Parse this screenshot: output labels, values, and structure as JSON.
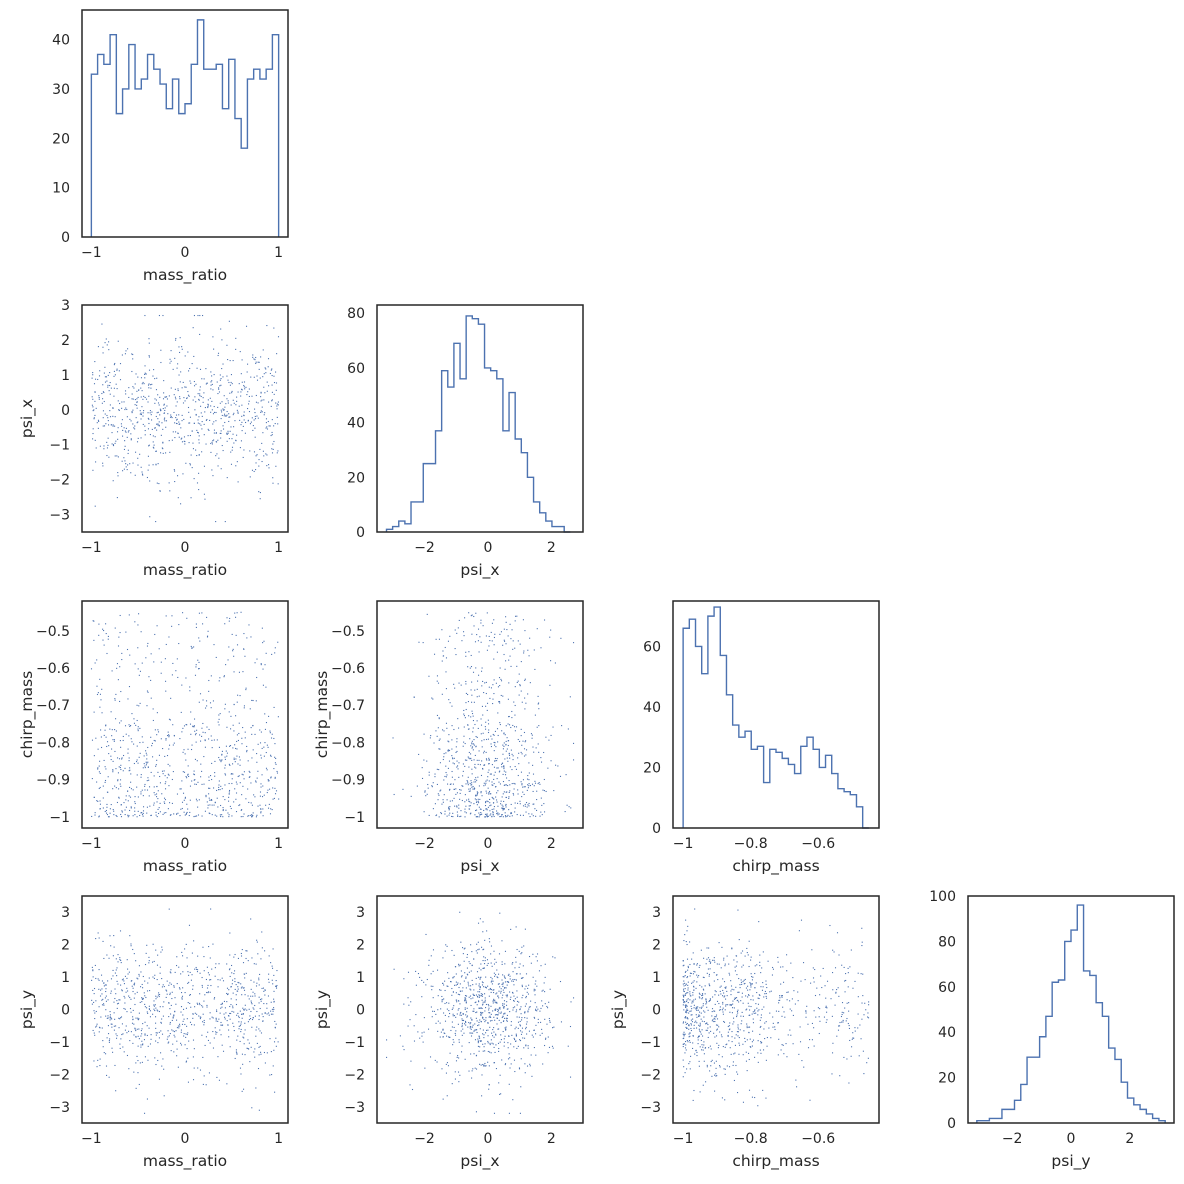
{
  "chart_data": {
    "type": "corner",
    "grid": false,
    "variables": [
      {
        "name": "mass_ratio",
        "range": [
          -1.1,
          1.1
        ],
        "ticks": [
          -1,
          0,
          1
        ]
      },
      {
        "name": "psi_x",
        "range": [
          -3.5,
          3.0
        ],
        "ticks": [
          -2,
          0,
          2
        ]
      },
      {
        "name": "chirp_mass",
        "range": [
          -1.03,
          -0.42
        ],
        "ticks": [
          -1.0,
          -0.8,
          -0.6
        ]
      },
      {
        "name": "psi_y",
        "range": [
          -3.5,
          3.5
        ],
        "ticks": [
          -2,
          0,
          2
        ]
      }
    ],
    "scatter_ticks": {
      "psi_x": [
        -3,
        -2,
        -1,
        0,
        1,
        2,
        3
      ],
      "chirp_mass": [
        -1.0,
        -0.9,
        -0.8,
        -0.7,
        -0.6,
        -0.5
      ],
      "psi_y": [
        -3,
        -2,
        -1,
        0,
        1,
        2,
        3
      ]
    },
    "scatter_ranges": {
      "psi_x": [
        -3.5,
        3.0
      ],
      "chirp_mass": [
        -1.03,
        -0.42
      ],
      "psi_y": [
        -3.5,
        3.5
      ]
    },
    "histograms": [
      {
        "variable": "mass_ratio",
        "ylim": [
          0,
          46
        ],
        "yticks": [
          0,
          10,
          20,
          30,
          40
        ],
        "bin_range": [
          -1.0,
          1.0
        ],
        "counts": [
          33,
          37,
          35,
          41,
          25,
          30,
          39,
          30,
          32,
          37,
          34,
          31,
          26,
          32,
          25,
          27,
          35,
          44,
          34,
          34,
          35,
          26,
          36,
          24,
          18,
          32,
          34,
          32,
          34,
          41
        ]
      },
      {
        "variable": "psi_x",
        "ylim": [
          0,
          83
        ],
        "yticks": [
          0,
          20,
          40,
          60,
          80
        ],
        "bin_range": [
          -3.2,
          2.6
        ],
        "counts": [
          1,
          2,
          4,
          3,
          11,
          11,
          25,
          25,
          37,
          59,
          53,
          69,
          56,
          79,
          78,
          76,
          60,
          59,
          56,
          37,
          51,
          34,
          29,
          20,
          11,
          7,
          4,
          2,
          2,
          0
        ]
      },
      {
        "variable": "chirp_mass",
        "ylim": [
          0,
          75
        ],
        "yticks": [
          0,
          20,
          40,
          60
        ],
        "bin_range": [
          -1.0,
          -0.45
        ],
        "counts": [
          66,
          69,
          60,
          51,
          70,
          73,
          57,
          44,
          34,
          30,
          32,
          26,
          27,
          15,
          26,
          25,
          23,
          21,
          18,
          27,
          30,
          26,
          20,
          24,
          18,
          13,
          12,
          11,
          7,
          0
        ]
      },
      {
        "variable": "psi_y",
        "ylim": [
          0,
          100
        ],
        "yticks": [
          0,
          20,
          40,
          60,
          80,
          100
        ],
        "bin_range": [
          -3.2,
          3.2
        ],
        "counts": [
          1,
          1,
          2,
          2,
          6,
          6,
          10,
          17,
          29,
          29,
          38,
          47,
          62,
          63,
          80,
          85,
          96,
          67,
          65,
          53,
          47,
          33,
          28,
          18,
          11,
          8,
          6,
          4,
          2,
          1
        ]
      }
    ],
    "scatter_panels": [
      {
        "x": "mass_ratio",
        "y": "psi_x",
        "n_points": 900
      },
      {
        "x": "mass_ratio",
        "y": "chirp_mass",
        "n_points": 900
      },
      {
        "x": "psi_x",
        "y": "chirp_mass",
        "n_points": 900
      },
      {
        "x": "mass_ratio",
        "y": "psi_y",
        "n_points": 900
      },
      {
        "x": "psi_x",
        "y": "psi_y",
        "n_points": 900
      },
      {
        "x": "chirp_mass",
        "y": "psi_y",
        "n_points": 900
      }
    ],
    "colors": {
      "line": "#4c72b0",
      "frame": "#262626",
      "text": "#262626"
    }
  }
}
